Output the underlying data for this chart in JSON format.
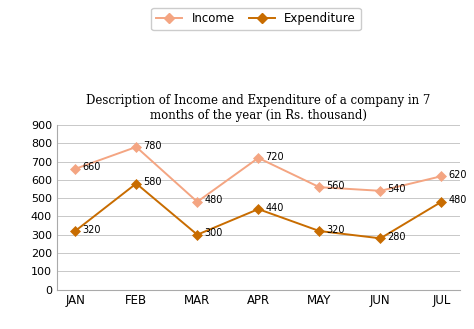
{
  "months": [
    "JAN",
    "FEB",
    "MAR",
    "APR",
    "MAY",
    "JUN",
    "JUL"
  ],
  "income": [
    660,
    780,
    480,
    720,
    560,
    540,
    620
  ],
  "expenditure": [
    320,
    580,
    300,
    440,
    320,
    280,
    480
  ],
  "income_color": "#f4a582",
  "expenditure_color": "#c86c00",
  "title": "Description of Income and Expenditure of a company in 7\nmonths of the year (in Rs. thousand)",
  "legend_income": "Income",
  "legend_expenditure": "Expenditure",
  "ylim": [
    0,
    900
  ],
  "yticks": [
    0,
    100,
    200,
    300,
    400,
    500,
    600,
    700,
    800,
    900
  ],
  "background_color": "#ffffff",
  "grid_color": "#c8c8c8"
}
